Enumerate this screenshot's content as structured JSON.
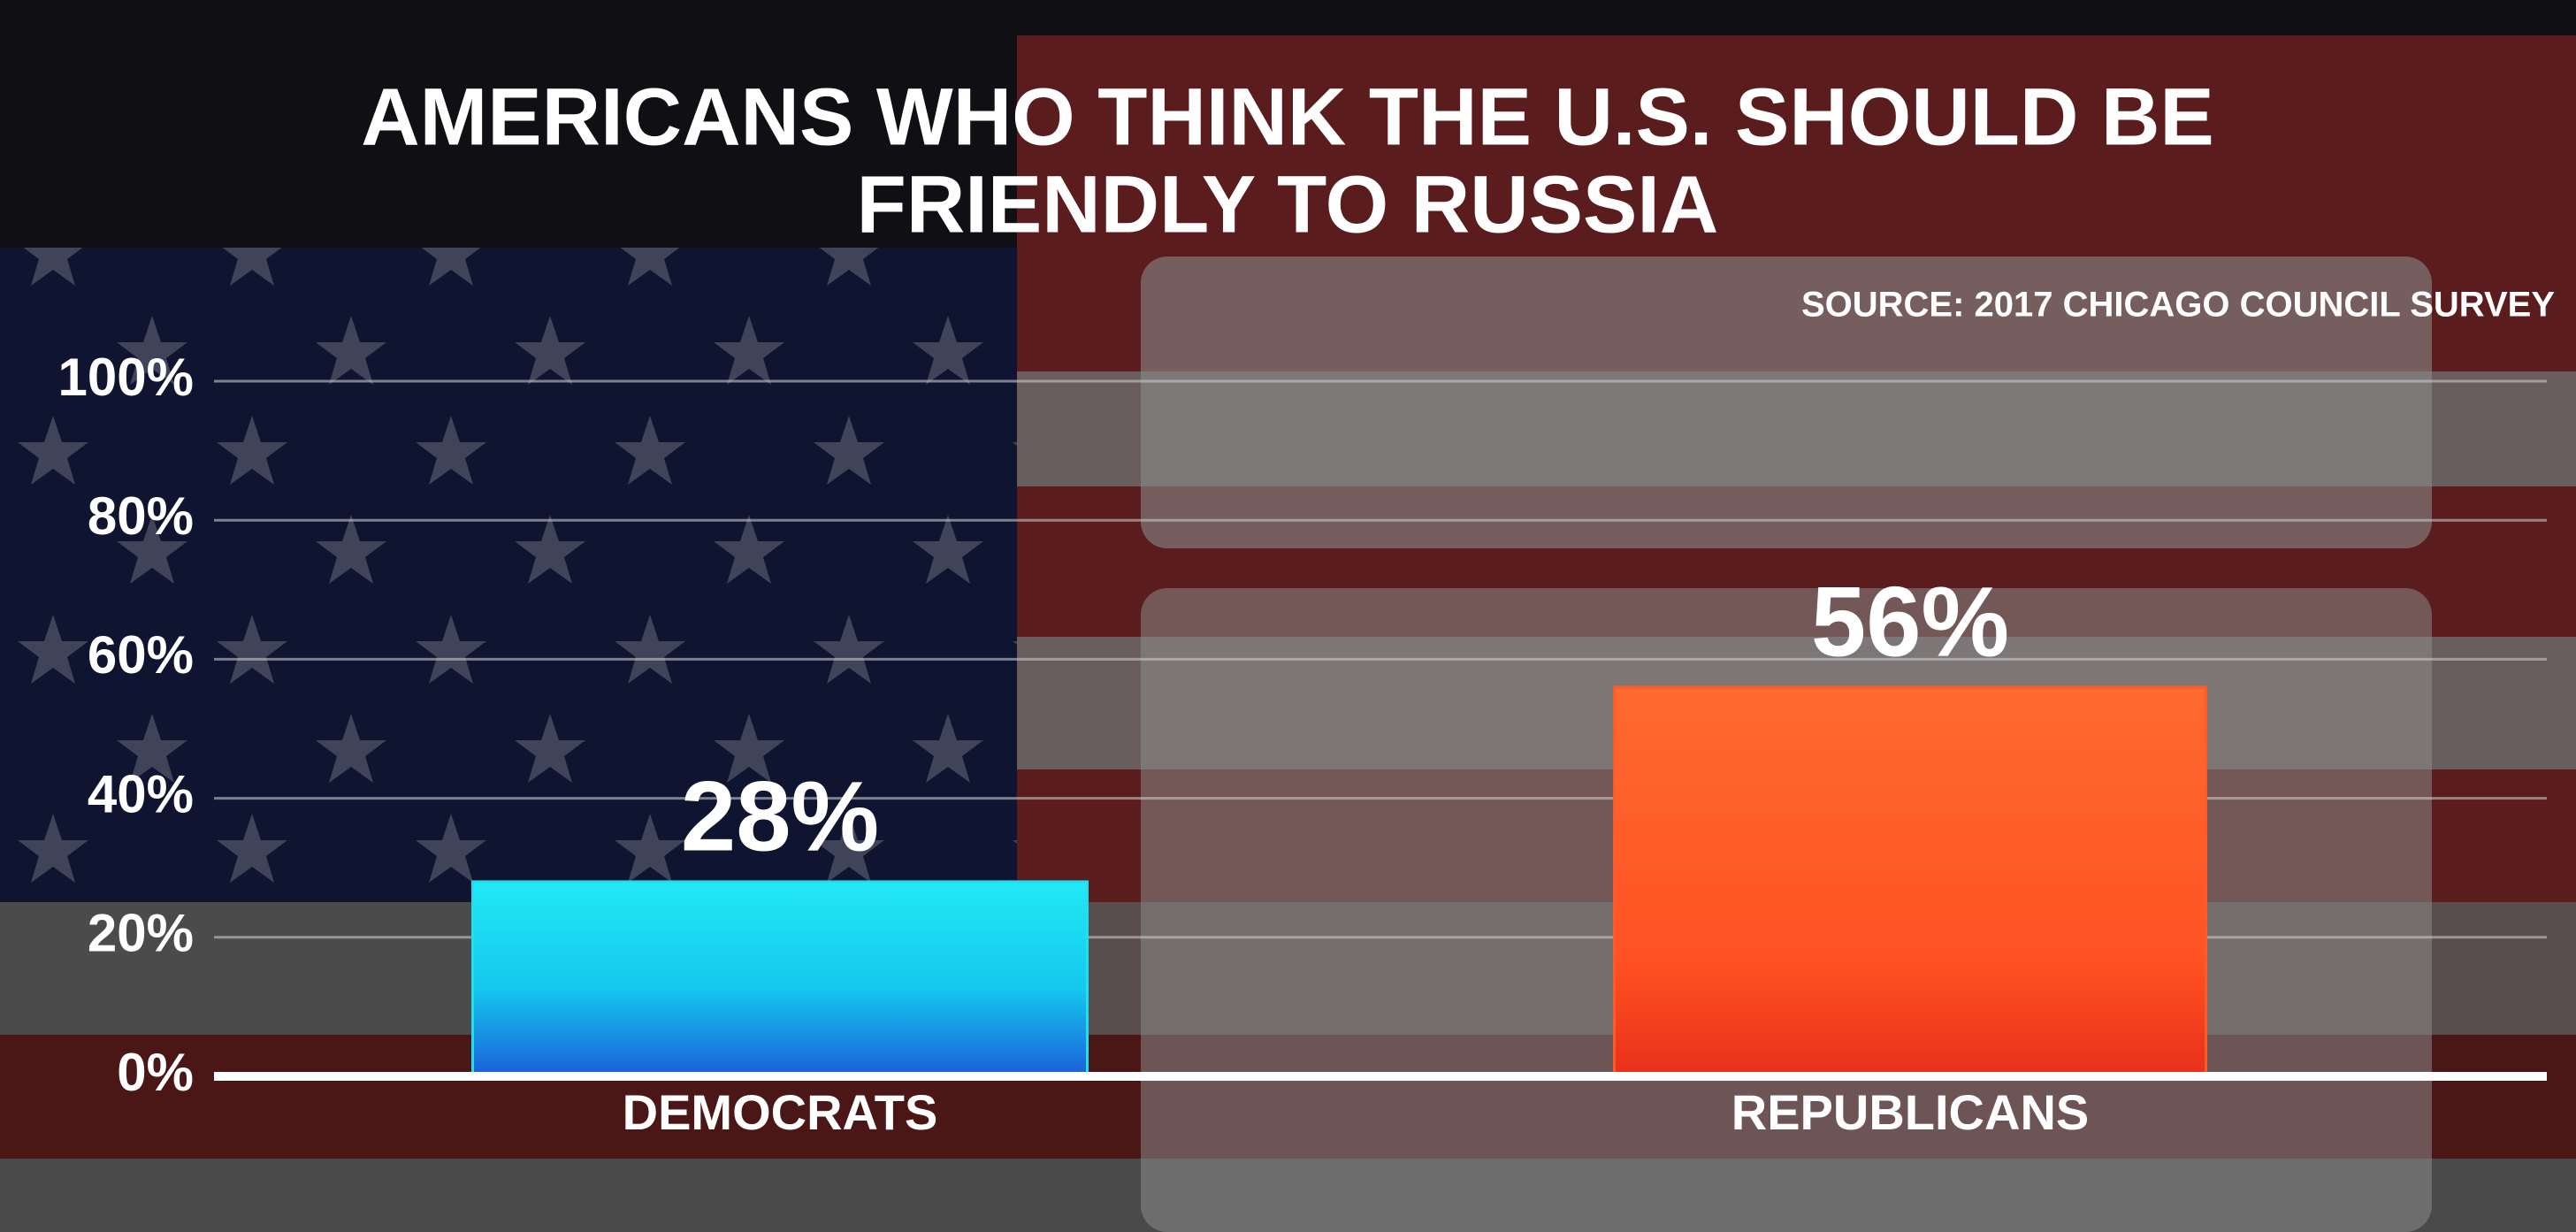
{
  "chart_data": {
    "type": "bar",
    "title": [
      "AMERICANS WHO THINK THE U.S. SHOULD BE",
      "FRIENDLY TO RUSSIA"
    ],
    "source": "SOURCE: 2017 CHICAGO COUNCIL SURVEY",
    "categories": [
      "DEMOCRATS",
      "REPUBLICANS"
    ],
    "values": [
      28,
      56
    ],
    "value_labels": [
      "28%",
      "56%"
    ],
    "colors": [
      "#1ee0f0",
      "#ff5a2a"
    ],
    "ylim": [
      0,
      100
    ],
    "yticks": [
      {
        "value": 0,
        "label": "0%"
      },
      {
        "value": 20,
        "label": "20%"
      },
      {
        "value": 40,
        "label": "40%"
      },
      {
        "value": 60,
        "label": "60%"
      },
      {
        "value": 80,
        "label": "80%"
      },
      {
        "value": 100,
        "label": "100%"
      }
    ],
    "grid": true
  }
}
